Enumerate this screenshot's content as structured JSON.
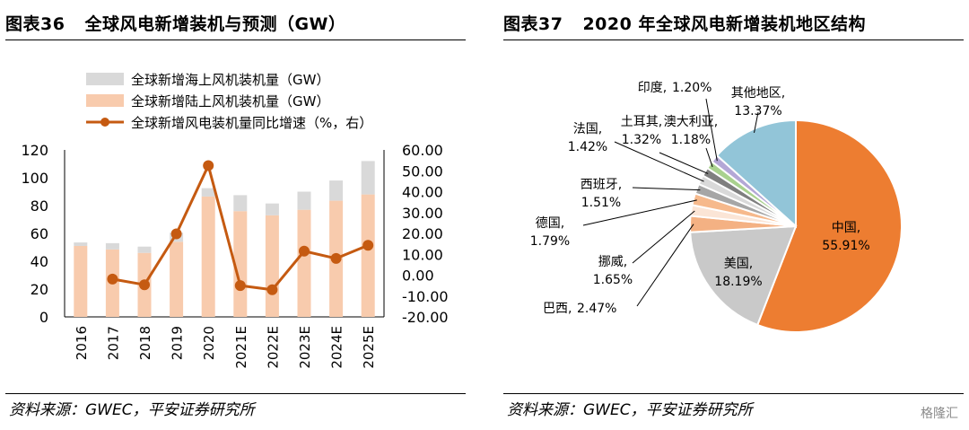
{
  "left": {
    "figure_no": "图表36",
    "title": "全球风电新增装机与预测（GW）",
    "source": "资料来源：GWEC，平安证券研究所"
  },
  "right": {
    "figure_no": "图表37",
    "title": "2020 年全球风电新增装机地区结构",
    "source": "资料来源：GWEC，平安证券研究所"
  },
  "watermark": "格隆汇",
  "colors": {
    "offshore": "#d9d9d9",
    "onshore": "#f8cbad",
    "line": "#c55a11",
    "china": "#ed7d31",
    "usa": "#c9c9c9",
    "others_region": "#92c5d8"
  },
  "chart_data": [
    {
      "type": "bar",
      "stacked": true,
      "categories": [
        "2016",
        "2017",
        "2018",
        "2019",
        "2020",
        "2021E",
        "2022E",
        "2023E",
        "2024E",
        "2025E"
      ],
      "series": [
        {
          "name": "全球新增陆上风机装机量（GW）",
          "values": [
            51.0,
            48.5,
            46.0,
            54.0,
            86.5,
            76.0,
            73.0,
            77.0,
            83.5,
            88.0
          ]
        },
        {
          "name": "全球新增海上风机装机量（GW）",
          "values": [
            2.5,
            4.5,
            4.5,
            6.5,
            6.0,
            11.5,
            8.5,
            13.0,
            14.5,
            24.0
          ]
        }
      ],
      "line_series": {
        "name": "全球新增风电装机量同比增速（%，右）",
        "values": [
          null,
          -1.9,
          -4.6,
          19.8,
          52.5,
          -5.0,
          -7.0,
          11.5,
          8.0,
          14.3
        ]
      },
      "y_left": {
        "min": 0,
        "max": 120,
        "ticks": [
          "0",
          "20",
          "40",
          "60",
          "80",
          "100",
          "120"
        ]
      },
      "y_right": {
        "min": -20,
        "max": 60,
        "ticks": [
          "-20.00",
          "-10.00",
          "0.00",
          "10.00",
          "20.00",
          "30.00",
          "40.00",
          "50.00",
          "60.00"
        ]
      },
      "legend": [
        "全球新增海上风机装机量（GW）",
        "全球新增陆上风机装机量（GW）",
        "全球新增风电装机量同比增速（%，右）"
      ],
      "legend_position": "top-left",
      "grid": false
    },
    {
      "type": "pie",
      "start": "top",
      "direction": "clockwise",
      "slices": [
        {
          "label": "中国",
          "pct": "55.91%",
          "value": 55.91,
          "color": "#ed7d31"
        },
        {
          "label": "美国",
          "pct": "18.19%",
          "value": 18.19,
          "color": "#c9c9c9"
        },
        {
          "label": "巴西",
          "pct": "2.47%",
          "value": 2.47,
          "color": "#f4b183"
        },
        {
          "label": "挪威",
          "pct": "1.65%",
          "value": 1.65,
          "color": "#fbe5d6"
        },
        {
          "label": "德国",
          "pct": "1.79%",
          "value": 1.79,
          "color": "#f6b98c"
        },
        {
          "label": "西班牙",
          "pct": "1.51%",
          "value": 1.51,
          "color": "#a6a6a6"
        },
        {
          "label": "法国",
          "pct": "1.42%",
          "value": 1.42,
          "color": "#d9d9d9"
        },
        {
          "label": "土耳其",
          "pct": "1.32%",
          "value": 1.32,
          "color": "#7f7f7f"
        },
        {
          "label": "澳大利亚",
          "pct": "1.18%",
          "value": 1.18,
          "color": "#a9d18e"
        },
        {
          "label": "印度",
          "pct": "1.20%",
          "value": 1.2,
          "color": "#b4a7d6"
        },
        {
          "label": "其他地区",
          "pct": "13.37%",
          "value": 13.37,
          "color": "#92c5d8"
        }
      ]
    }
  ]
}
